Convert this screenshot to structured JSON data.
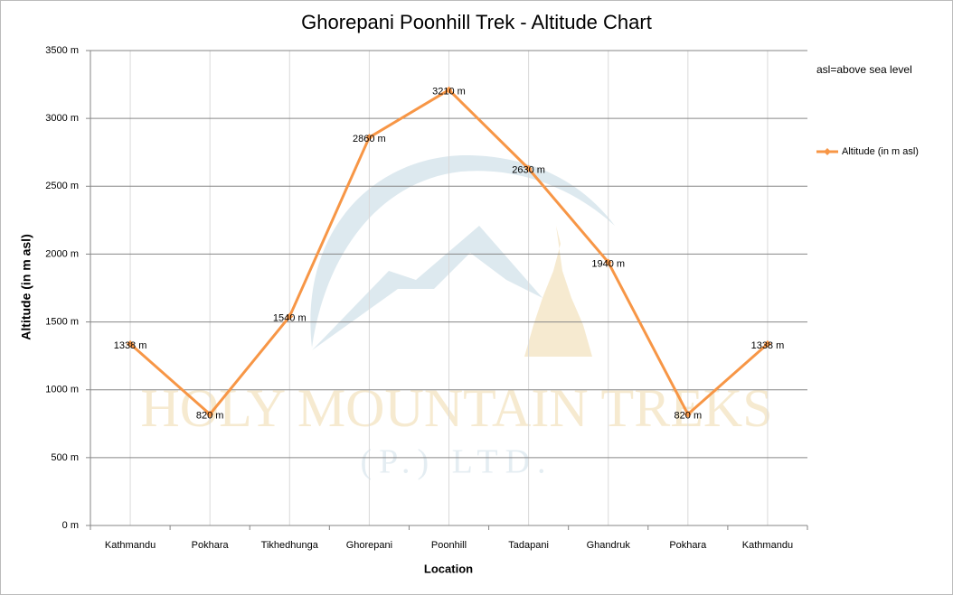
{
  "chart_data": {
    "type": "line",
    "title": "Ghorepani Poonhill Trek - Altitude Chart",
    "x_label": "Location",
    "y_label": "Altitude (in m asl)",
    "annotation": "asl=above sea level",
    "watermark": [
      "HOLY MOUNTAIN TREKS",
      "(P.) LTD."
    ],
    "categories": [
      "Kathmandu",
      "Pokhara",
      "Tikhedhunga",
      "Ghorepani",
      "Poonhill",
      "Tadapani",
      "Ghandruk",
      "Pokhara",
      "Kathmandu"
    ],
    "series": [
      {
        "name": "Altitude (in  m asl)",
        "color": "#f79646",
        "values": [
          1338,
          820,
          1540,
          2860,
          3210,
          2630,
          1940,
          820,
          1338
        ],
        "value_labels": [
          "1338 m",
          "820 m",
          "1540 m",
          "2860 m",
          "3210 m",
          "2630 m",
          "1940 m",
          "820 m",
          "1338 m"
        ]
      }
    ],
    "ylim": [
      0,
      3500
    ],
    "yticks": [
      {
        "value": 0,
        "label": "0 m"
      },
      {
        "value": 500,
        "label": "500 m"
      },
      {
        "value": 1000,
        "label": "1000 m"
      },
      {
        "value": 1500,
        "label": "1500 m"
      },
      {
        "value": 2000,
        "label": "2000 m"
      },
      {
        "value": 2500,
        "label": "2500 m"
      },
      {
        "value": 3000,
        "label": "3000 m"
      },
      {
        "value": 3500,
        "label": "3500 m"
      }
    ],
    "grid": true,
    "legend": "right"
  }
}
